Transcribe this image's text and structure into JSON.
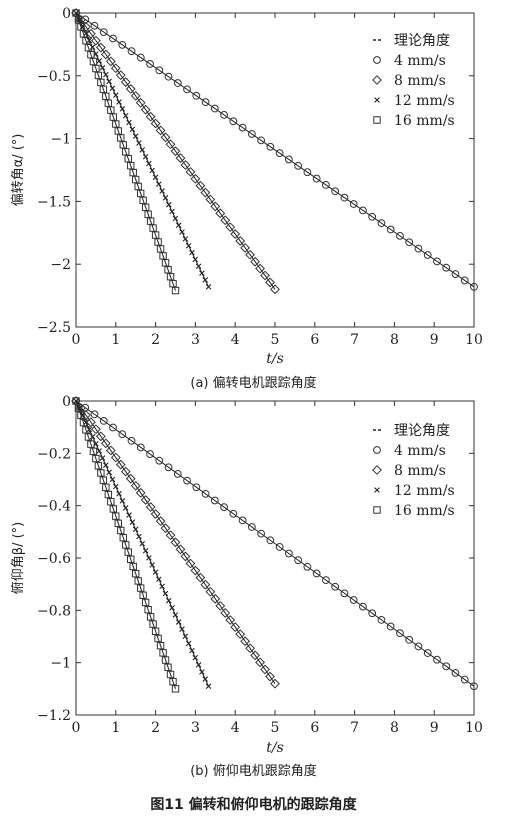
{
  "figure_title": "图11   偏转和俯仰电机的跟踪角度",
  "chart_data": [
    {
      "type": "scatter",
      "caption": "(a) 偏转电机跟踪角度",
      "xlabel": "t/s",
      "ylabel": "偏转角α/ (°)",
      "xlim": [
        0,
        10
      ],
      "ylim": [
        -2.5,
        0
      ],
      "xticks": [
        0,
        1,
        2,
        3,
        4,
        5,
        6,
        7,
        8,
        9,
        10
      ],
      "yticks": [
        0,
        -0.5,
        -1,
        -1.5,
        -2,
        -2.5
      ],
      "ytick_labels": [
        "0",
        "−0.5",
        "−1",
        "−1.5",
        "−2",
        "−2.5"
      ],
      "grid": false,
      "legend_position": "top-right",
      "series": [
        {
          "name": "理论角度",
          "marker": "dash-line",
          "x": [
            0,
            10
          ],
          "y": [
            0,
            -2.18
          ]
        },
        {
          "name": "4 mm/s",
          "marker": "circle",
          "t_end": 10,
          "y_end": -2.18,
          "count": 43
        },
        {
          "name": "8 mm/s",
          "marker": "diamond",
          "t_end": 5,
          "y_end": -2.2,
          "count": 40
        },
        {
          "name": "12 mm/s",
          "marker": "x",
          "t_end": 3.33,
          "y_end": -2.18,
          "count": 40
        },
        {
          "name": "16 mm/s",
          "marker": "square",
          "t_end": 2.5,
          "y_end": -2.21,
          "count": 40
        }
      ]
    },
    {
      "type": "scatter",
      "caption": "(b) 俯仰电机跟踪角度",
      "xlabel": "t/s",
      "ylabel": "俯仰角β/ (°)",
      "xlim": [
        0,
        10
      ],
      "ylim": [
        -1.2,
        0
      ],
      "xticks": [
        0,
        1,
        2,
        3,
        4,
        5,
        6,
        7,
        8,
        9,
        10
      ],
      "yticks": [
        0,
        -0.2,
        -0.4,
        -0.6,
        -0.8,
        -1,
        -1.2
      ],
      "ytick_labels": [
        "0",
        "−0.2",
        "−0.4",
        "−0.6",
        "−0.8",
        "−1",
        "−1.2"
      ],
      "grid": false,
      "legend_position": "top-right",
      "series": [
        {
          "name": "理论角度",
          "marker": "dash-line",
          "x": [
            0,
            10
          ],
          "y": [
            0,
            -1.09
          ]
        },
        {
          "name": "4 mm/s",
          "marker": "circle",
          "t_end": 10,
          "y_end": -1.09,
          "count": 43
        },
        {
          "name": "8 mm/s",
          "marker": "diamond",
          "t_end": 5,
          "y_end": -1.08,
          "count": 40
        },
        {
          "name": "12 mm/s",
          "marker": "x",
          "t_end": 3.33,
          "y_end": -1.09,
          "count": 40
        },
        {
          "name": "16 mm/s",
          "marker": "square",
          "t_end": 2.5,
          "y_end": -1.1,
          "count": 40
        }
      ]
    }
  ]
}
